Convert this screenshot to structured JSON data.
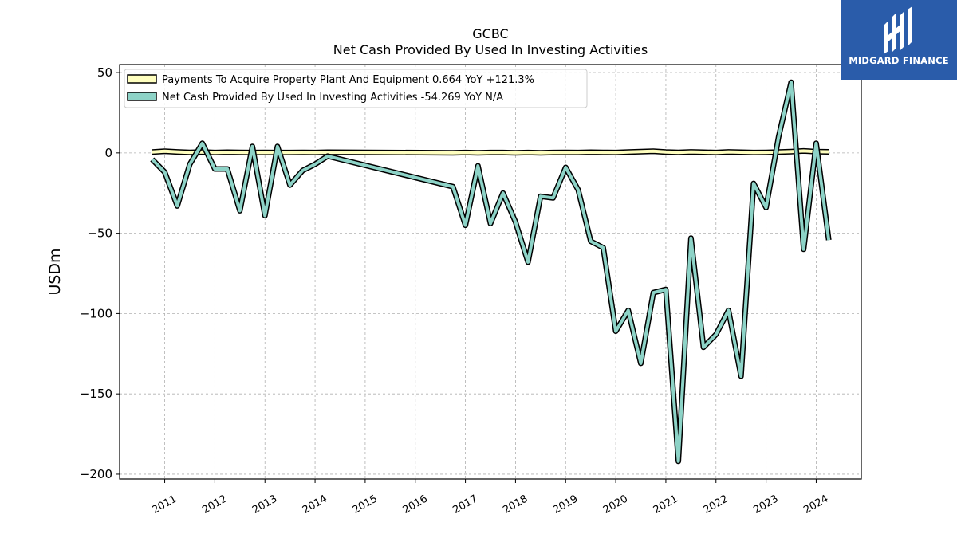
{
  "title": "GCBC",
  "subtitle": "Net Cash Provided By Used In Investing Activities",
  "brand": {
    "name": "MIDGARD FINANCE",
    "color": "#2a5caa"
  },
  "chart_data": {
    "type": "line",
    "ylabel": "USDm",
    "xlabel": "",
    "ylim": [
      -203,
      55
    ],
    "xlim": [
      2010.1,
      2024.9
    ],
    "yticks": [
      50,
      0,
      -50,
      -100,
      -150,
      -200
    ],
    "ytick_labels": [
      "50",
      "0",
      "−50",
      "−100",
      "−150",
      "−200"
    ],
    "xticks": [
      2011,
      2012,
      2013,
      2014,
      2015,
      2016,
      2017,
      2018,
      2019,
      2020,
      2021,
      2022,
      2023,
      2024
    ],
    "xtick_labels": [
      "2011",
      "2012",
      "2013",
      "2014",
      "2015",
      "2016",
      "2017",
      "2018",
      "2019",
      "2020",
      "2021",
      "2022",
      "2023",
      "2024"
    ],
    "grid": true,
    "legend_position": "top-left",
    "legend": [
      "Payments To Acquire Property Plant And Equipment  0.664 YoY +121.3%",
      "Net Cash Provided By Used In Investing Activities  -54.269 YoY N/A"
    ],
    "series": [
      {
        "name": "Payments To Acquire Property Plant And Equipment",
        "color": "#ffffbf",
        "x": [
          2010.75,
          2011.0,
          2011.25,
          2011.5,
          2011.75,
          2012.0,
          2012.25,
          2012.5,
          2012.75,
          2013.0,
          2013.25,
          2013.5,
          2013.75,
          2014.0,
          2014.25,
          2016.75,
          2017.0,
          2017.25,
          2017.5,
          2017.75,
          2018.0,
          2018.25,
          2018.5,
          2018.75,
          2019.0,
          2019.25,
          2019.5,
          2019.75,
          2020.0,
          2020.25,
          2020.5,
          2020.75,
          2021.0,
          2021.25,
          2021.5,
          2021.75,
          2022.0,
          2022.25,
          2022.5,
          2022.75,
          2023.0,
          2023.25,
          2023.5,
          2023.75,
          2024.0,
          2024.25
        ],
        "values": [
          0.5,
          1.0,
          0.6,
          0.3,
          0.5,
          0.2,
          0.4,
          0.3,
          0.2,
          0.3,
          0.2,
          0.2,
          0.3,
          0.2,
          0.4,
          0.1,
          0.2,
          0.1,
          0.2,
          0.2,
          0.1,
          0.2,
          0.1,
          0.2,
          0.3,
          0.2,
          0.4,
          0.3,
          0.2,
          0.5,
          0.8,
          1.0,
          0.5,
          0.3,
          0.6,
          0.4,
          0.2,
          0.6,
          0.4,
          0.2,
          0.3,
          0.5,
          0.8,
          1.2,
          0.8,
          0.664
        ]
      },
      {
        "name": "Net Cash Provided By Used In Investing Activities",
        "color": "#8dd3c7",
        "x": [
          2010.75,
          2011.0,
          2011.25,
          2011.5,
          2011.75,
          2012.0,
          2012.25,
          2012.5,
          2012.75,
          2013.0,
          2013.25,
          2013.5,
          2013.75,
          2014.0,
          2014.25,
          2016.75,
          2017.0,
          2017.25,
          2017.5,
          2017.75,
          2018.0,
          2018.25,
          2018.5,
          2018.75,
          2019.0,
          2019.25,
          2019.5,
          2019.75,
          2020.0,
          2020.25,
          2020.5,
          2020.75,
          2021.0,
          2021.25,
          2021.5,
          2021.75,
          2022.0,
          2022.25,
          2022.5,
          2022.75,
          2023.0,
          2023.25,
          2023.5,
          2023.75,
          2024.0,
          2024.25
        ],
        "values": [
          -4,
          -12,
          -33,
          -7,
          6,
          -10,
          -10,
          -36,
          4,
          -39,
          4,
          -20,
          -11,
          -7,
          -2,
          -21,
          -45,
          -8,
          -44,
          -25,
          -43,
          -68,
          -27,
          -28,
          -9,
          -23,
          -55,
          -59,
          -111,
          -98,
          -131,
          -87,
          -85,
          -192,
          -53,
          -121,
          -113,
          -98,
          -139,
          -19,
          -34,
          10,
          44,
          -60,
          6,
          -54.269
        ]
      }
    ]
  }
}
